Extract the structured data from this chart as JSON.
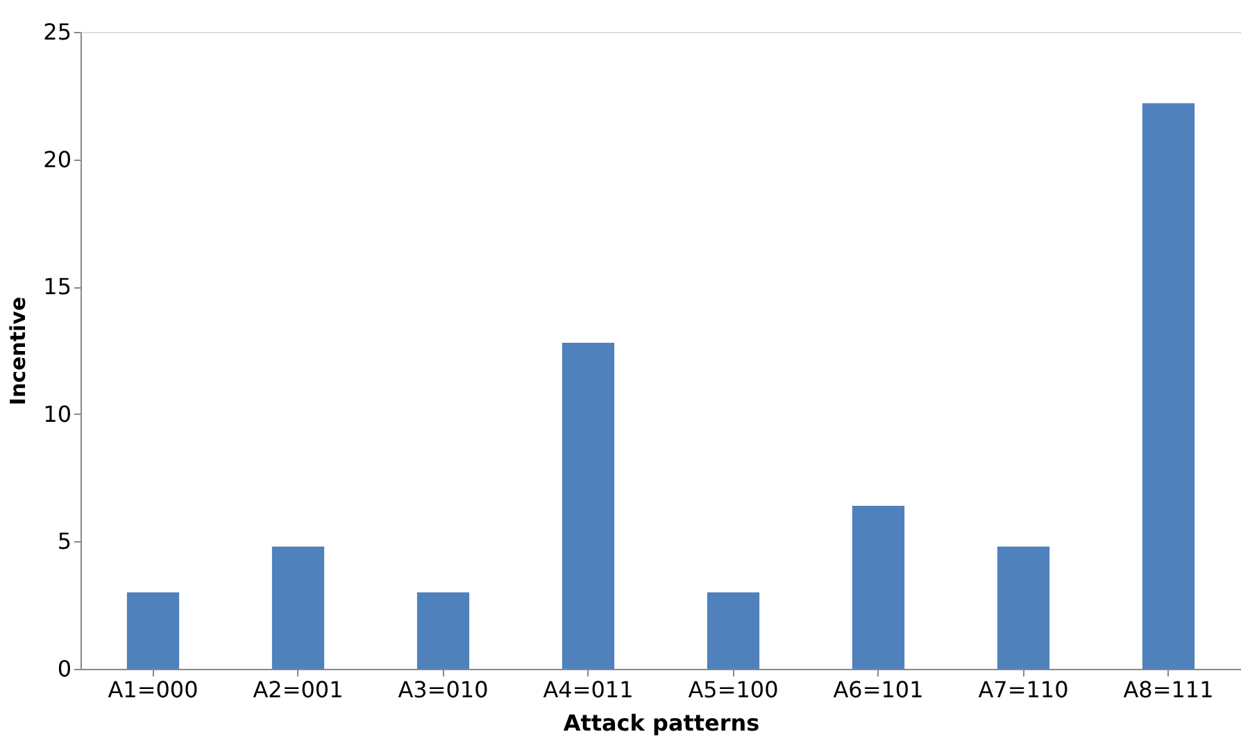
{
  "chart_data": {
    "type": "bar",
    "xlabel": "Attack patterns",
    "ylabel": "Incentive",
    "categories": [
      "A1=000",
      "A2=001",
      "A3=010",
      "A4=011",
      "A5=100",
      "A6=101",
      "A7=110",
      "A8=111"
    ],
    "values": [
      3.0,
      4.8,
      3.0,
      12.8,
      3.0,
      6.4,
      4.8,
      22.2
    ],
    "color": "#4f81bd",
    "ylim": [
      0,
      25
    ],
    "yticks": [
      0,
      5,
      10,
      15,
      20,
      25
    ],
    "grid": false
  }
}
